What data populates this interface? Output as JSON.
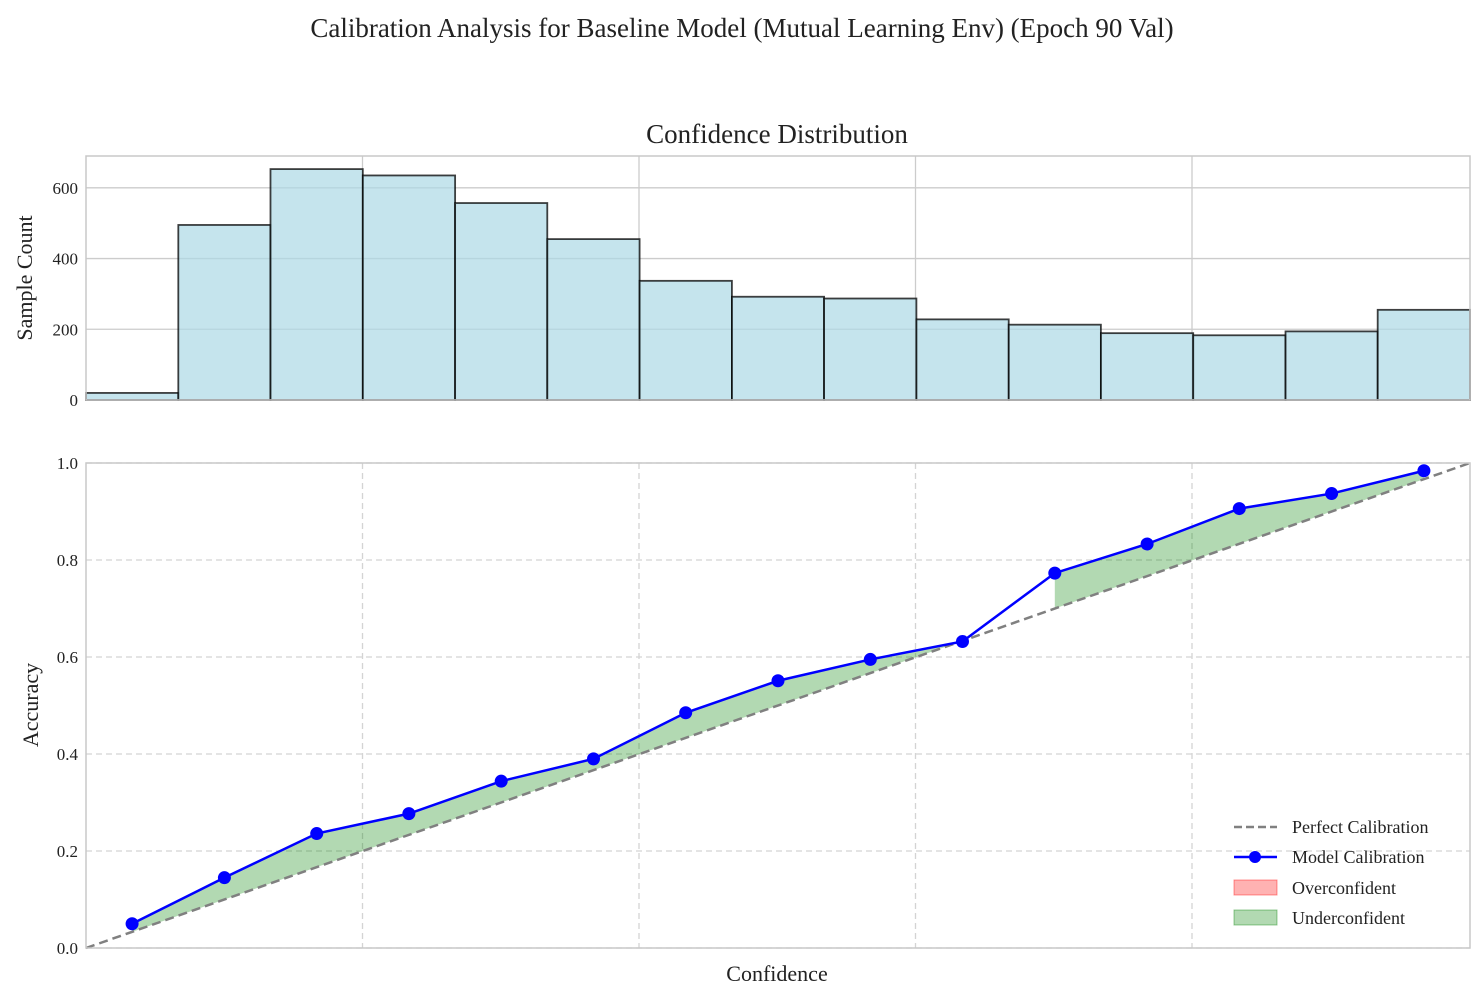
{
  "figure": {
    "suptitle": "Calibration Analysis for Baseline Model (Mutual Learning Env) (Epoch 90 Val)"
  },
  "chart_data": [
    {
      "type": "bar",
      "subtype": "histogram",
      "title": "Confidence Distribution",
      "xlabel": "",
      "ylabel": "Sample Count",
      "xlim": [
        0,
        1
      ],
      "ylim": [
        0,
        690
      ],
      "yticks": [
        0,
        200,
        400,
        600
      ],
      "bin_width": 0.0667,
      "bin_edges": [
        0,
        0.0667,
        0.1333,
        0.2,
        0.2667,
        0.3333,
        0.4,
        0.4667,
        0.5333,
        0.6,
        0.6667,
        0.7333,
        0.8,
        0.8667,
        0.9333,
        1.0
      ],
      "values": [
        20,
        495,
        653,
        635,
        557,
        455,
        337,
        292,
        287,
        228,
        213,
        189,
        183,
        194,
        255
      ],
      "grid": true,
      "bar_color": "#add8e6",
      "edge_color": "#000000"
    },
    {
      "type": "line",
      "title": "",
      "xlabel": "Confidence",
      "ylabel": "Accuracy",
      "xlim": [
        0,
        1
      ],
      "ylim": [
        0,
        1
      ],
      "yticks": [
        "0.0",
        "0.2",
        "0.4",
        "0.6",
        "0.8",
        "1.0"
      ],
      "grid": "dashed",
      "legend_position": "lower-right",
      "series": [
        {
          "name": "Perfect Calibration",
          "style": "dashed",
          "color": "#808080",
          "x": [
            0,
            1
          ],
          "y": [
            0,
            1
          ]
        },
        {
          "name": "Model Calibration",
          "style": "solid-marker",
          "color": "#0000ff",
          "x": [
            0.0333,
            0.1,
            0.1667,
            0.2333,
            0.3,
            0.3667,
            0.4333,
            0.5,
            0.5667,
            0.6333,
            0.7,
            0.7667,
            0.8333,
            0.9,
            0.9667
          ],
          "y": [
            0.05,
            0.145,
            0.236,
            0.277,
            0.344,
            0.39,
            0.485,
            0.551,
            0.595,
            0.632,
            0.773,
            0.833,
            0.906,
            0.937,
            0.984
          ]
        }
      ],
      "fill_legend": [
        {
          "name": "Overconfident",
          "color": "#ff0000"
        },
        {
          "name": "Underconfident",
          "color": "#008000"
        }
      ]
    }
  ]
}
